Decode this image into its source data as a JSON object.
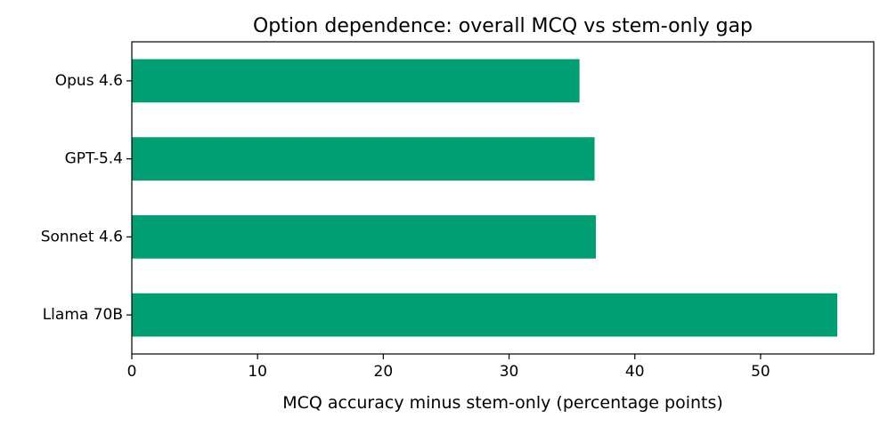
{
  "chart_data": {
    "type": "bar",
    "orientation": "horizontal",
    "title": "Option dependence: overall MCQ vs stem-only gap",
    "xlabel": "MCQ accuracy minus stem-only (percentage points)",
    "ylabel": "",
    "categories": [
      "Opus 4.6",
      "GPT-5.4",
      "Sonnet 4.6",
      "Llama 70B"
    ],
    "values": [
      35.6,
      36.8,
      36.9,
      56.1
    ],
    "xlim": [
      0,
      59
    ],
    "xticks": [
      0,
      10,
      20,
      30,
      40,
      50
    ],
    "grid": false,
    "legend": "none",
    "colors": {
      "bar": "#009E73",
      "axis": "#000000",
      "background": "#ffffff"
    }
  }
}
